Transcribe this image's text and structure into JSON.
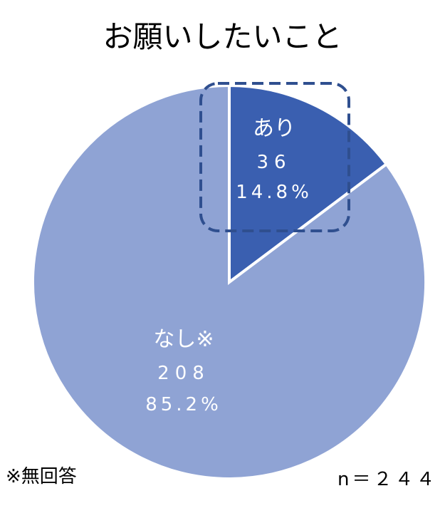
{
  "chart_data": {
    "type": "pie",
    "title": "お願いしたいこと",
    "slices": [
      {
        "label": "あり",
        "value": 36,
        "percent": "14.8%",
        "color": "#3a5fb0"
      },
      {
        "label": "なし※",
        "value": 208,
        "percent": "85.2%",
        "color": "#8fa3d4"
      }
    ],
    "start_angle_deg": 0,
    "direction": "clockwise",
    "highlight": "あり",
    "footnote": "※無回答",
    "total_label": "n＝２４４"
  }
}
